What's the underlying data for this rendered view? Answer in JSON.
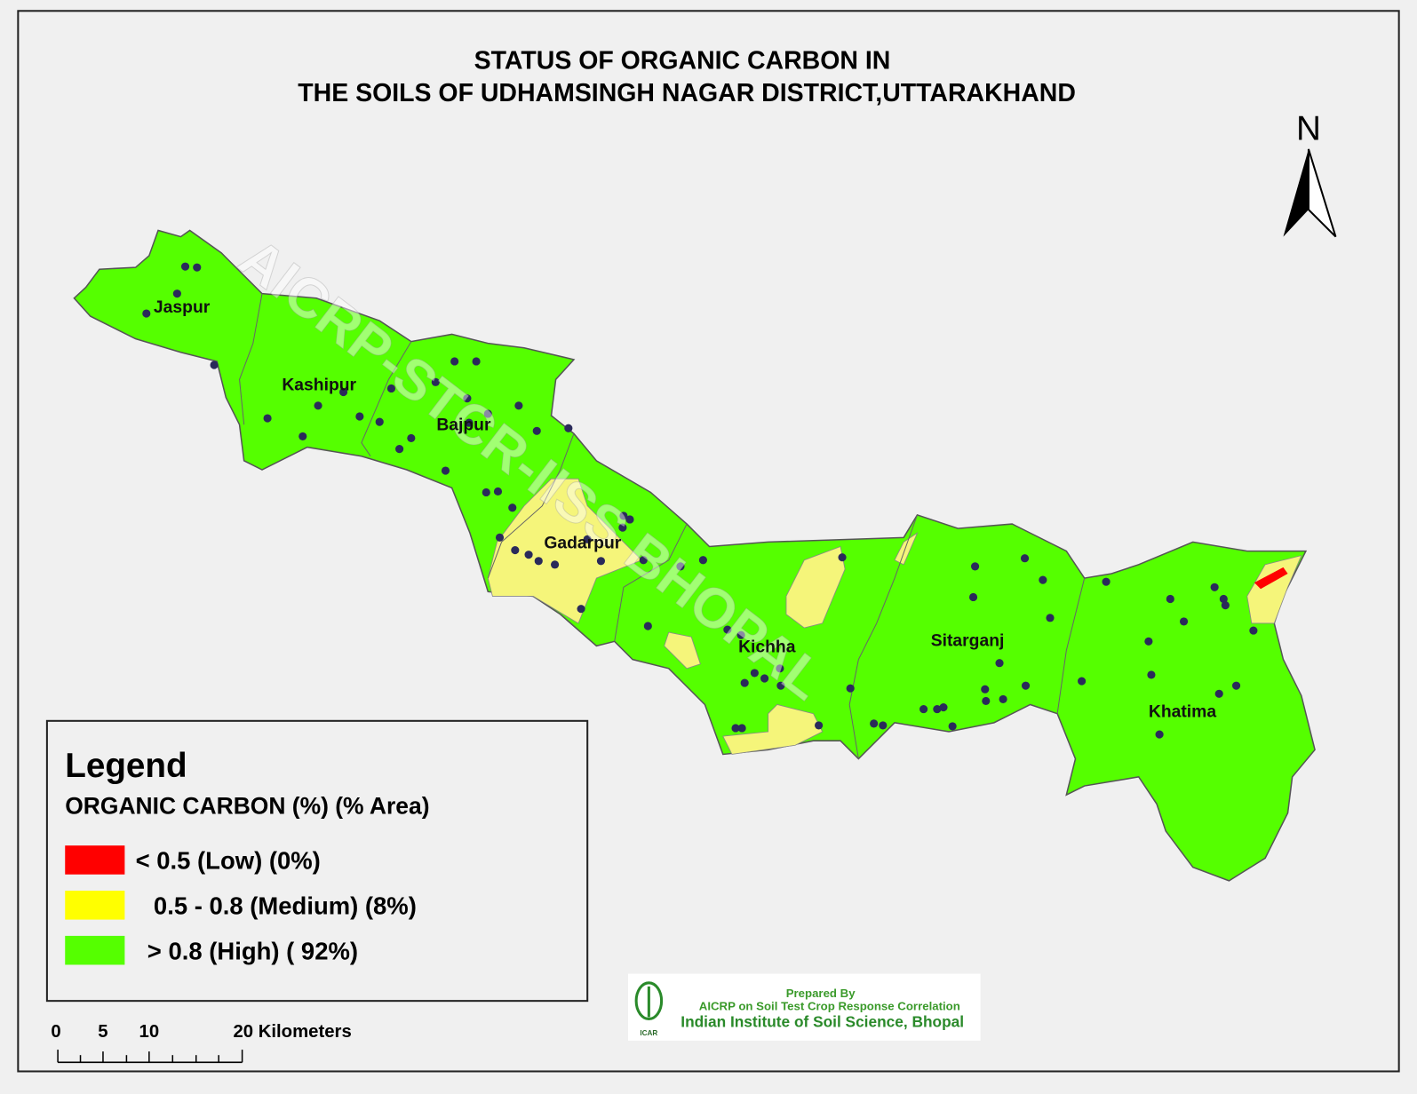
{
  "header": {
    "title_line_1": "STATUS OF  ORGANIC CARBON  IN",
    "title_line_2": "THE SOILS OF UDHAMSINGH NAGAR  DISTRICT,UTTARAKHAND"
  },
  "north_arrow": {
    "label": "N"
  },
  "map": {
    "watermark": "AICRP-STCR-IISS BHOPAL",
    "places": [
      {
        "label": "Jaspur"
      },
      {
        "label": "Kashipur"
      },
      {
        "label": "Bajpur"
      },
      {
        "label": "Gadarpur"
      },
      {
        "label": "Kichha"
      },
      {
        "label": "Sitarganj"
      },
      {
        "label": "Khatima"
      }
    ]
  },
  "legend": {
    "title": "Legend",
    "subtitle": "ORGANIC CARBON  (%)  (% Area)",
    "items": [
      {
        "label": "< 0.5  (Low)  (0%)",
        "color": "#ff0000"
      },
      {
        "label": "0.5 - 0.8  (Medium) (8%)",
        "color": "#ffff00"
      },
      {
        "label": "> 0.8 (High) ( 92%)",
        "color": "#55ff00"
      }
    ]
  },
  "scale_bar": {
    "labels": [
      "0",
      "5",
      "10",
      "20 Kilometers"
    ]
  },
  "credit": {
    "line_1": "Prepared By",
    "line_2": "AICRP on Soil Test Crop Response Correlation",
    "line_3": "Indian Institute of Soil Science, Bhopal",
    "logo_text": "ICAR"
  }
}
